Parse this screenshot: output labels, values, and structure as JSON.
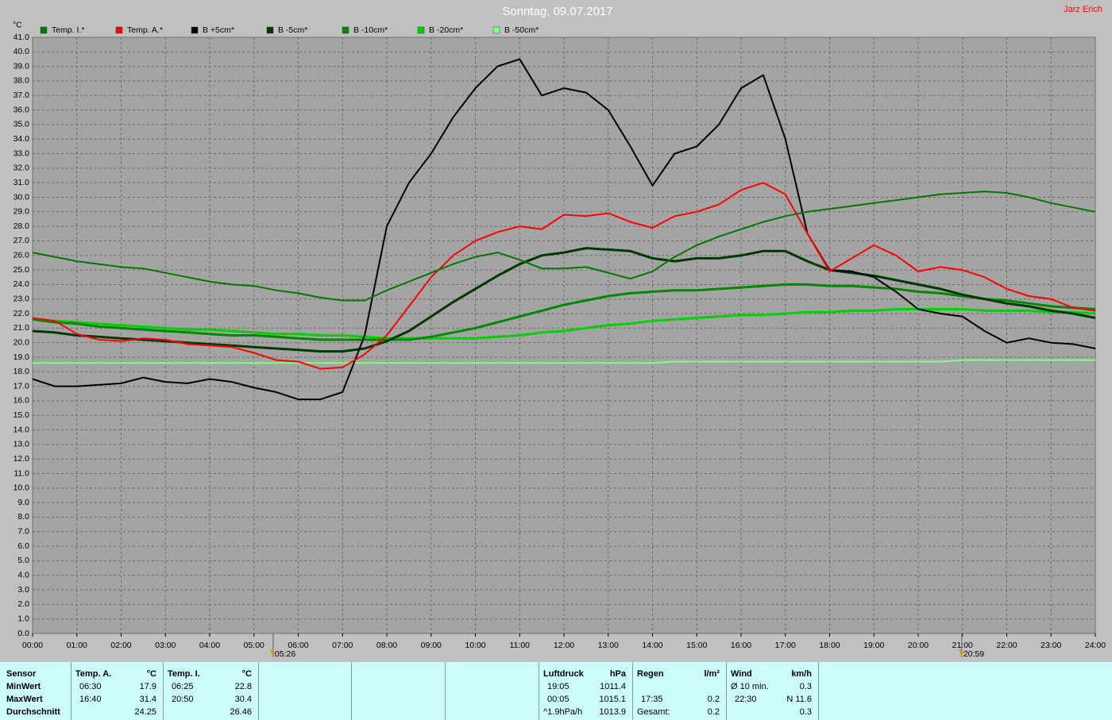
{
  "chart_data": {
    "type": "line",
    "title": "Sonntag, 09.07.2017",
    "author": "Jarz Erich",
    "ylabel": "°C",
    "legend": "top",
    "grid": true,
    "x": [
      0,
      0.5,
      1,
      1.5,
      2,
      2.5,
      3,
      3.5,
      4,
      4.5,
      5,
      5.5,
      6,
      6.5,
      7,
      7.5,
      8,
      8.5,
      9,
      9.5,
      10,
      10.5,
      11,
      11.5,
      12,
      12.5,
      13,
      13.5,
      14,
      14.5,
      15,
      15.5,
      16,
      16.5,
      17,
      17.5,
      18,
      18.5,
      19,
      19.5,
      20,
      20.5,
      21,
      21.5,
      22,
      22.5,
      23,
      23.5,
      24
    ],
    "xlim": [
      0,
      24
    ],
    "xticks": [
      {
        "value": 0,
        "label": "00:00"
      },
      {
        "value": 1,
        "label": "01:00"
      },
      {
        "value": 2,
        "label": "02:00"
      },
      {
        "value": 3,
        "label": "03:00"
      },
      {
        "value": 4,
        "label": "04:00"
      },
      {
        "value": 5,
        "label": "05:00"
      },
      {
        "value": 6,
        "label": "06:00"
      },
      {
        "value": 7,
        "label": "07:00"
      },
      {
        "value": 8,
        "label": "08:00"
      },
      {
        "value": 9,
        "label": "09:00"
      },
      {
        "value": 10,
        "label": "10:00"
      },
      {
        "value": 11,
        "label": "11:00"
      },
      {
        "value": 12,
        "label": "12:00"
      },
      {
        "value": 13,
        "label": "13:00"
      },
      {
        "value": 14,
        "label": "14:00"
      },
      {
        "value": 15,
        "label": "15:00"
      },
      {
        "value": 16,
        "label": "16:00"
      },
      {
        "value": 17,
        "label": "17:00"
      },
      {
        "value": 18,
        "label": "18:00"
      },
      {
        "value": 19,
        "label": "19:00"
      },
      {
        "value": 20,
        "label": "20:00"
      },
      {
        "value": 21,
        "label": "21:00"
      },
      {
        "value": 22,
        "label": "22:00"
      },
      {
        "value": 23,
        "label": "23:00"
      },
      {
        "value": 24,
        "label": "24:00"
      }
    ],
    "ylim": [
      0,
      41
    ],
    "yticks": [
      {
        "value": 0,
        "label": "0.0"
      },
      {
        "value": 1,
        "label": "1.0"
      },
      {
        "value": 2,
        "label": "2.0"
      },
      {
        "value": 3,
        "label": "3.0"
      },
      {
        "value": 4,
        "label": "4.0"
      },
      {
        "value": 5,
        "label": "5.0"
      },
      {
        "value": 6,
        "label": "6.0"
      },
      {
        "value": 7,
        "label": "7.0"
      },
      {
        "value": 8,
        "label": "8.0"
      },
      {
        "value": 9,
        "label": "9.0"
      },
      {
        "value": 10,
        "label": "10.0"
      },
      {
        "value": 11,
        "label": "11.0"
      },
      {
        "value": 12,
        "label": "12.0"
      },
      {
        "value": 13,
        "label": "13.0"
      },
      {
        "value": 14,
        "label": "14.0"
      },
      {
        "value": 15,
        "label": "15.0"
      },
      {
        "value": 16,
        "label": "16.0"
      },
      {
        "value": 17,
        "label": "17.0"
      },
      {
        "value": 18,
        "label": "18.0"
      },
      {
        "value": 19,
        "label": "19.0"
      },
      {
        "value": 20,
        "label": "20.0"
      },
      {
        "value": 21,
        "label": "21.0"
      },
      {
        "value": 22,
        "label": "22.0"
      },
      {
        "value": 23,
        "label": "23.0"
      },
      {
        "value": 24,
        "label": "24.0"
      },
      {
        "value": 25,
        "label": "25.0"
      },
      {
        "value": 26,
        "label": "26.0"
      },
      {
        "value": 27,
        "label": "27.0"
      },
      {
        "value": 28,
        "label": "28.0"
      },
      {
        "value": 29,
        "label": "29.0"
      },
      {
        "value": 30,
        "label": "30.0"
      },
      {
        "value": 31,
        "label": "31.0"
      },
      {
        "value": 32,
        "label": "32.0"
      },
      {
        "value": 33,
        "label": "33.0"
      },
      {
        "value": 34,
        "label": "34.0"
      },
      {
        "value": 35,
        "label": "35.0"
      },
      {
        "value": 36,
        "label": "36.0"
      },
      {
        "value": 37,
        "label": "37.0"
      },
      {
        "value": 38,
        "label": "38.0"
      },
      {
        "value": 39,
        "label": "39.0"
      },
      {
        "value": 40,
        "label": "40.0"
      },
      {
        "value": 41,
        "label": "41.0"
      }
    ],
    "series": [
      {
        "name": "Temp. I.*",
        "color": "#007800",
        "width": 2,
        "values": [
          26.2,
          25.9,
          25.6,
          25.4,
          25.2,
          25.1,
          24.8,
          24.5,
          24.2,
          24.0,
          23.9,
          23.6,
          23.4,
          23.1,
          22.9,
          22.9,
          23.6,
          24.2,
          24.8,
          25.4,
          25.9,
          26.2,
          25.7,
          25.1,
          25.1,
          25.2,
          24.8,
          24.4,
          24.9,
          25.9,
          26.7,
          27.3,
          27.8,
          28.3,
          28.7,
          29.0,
          29.2,
          29.4,
          29.6,
          29.8,
          30.0,
          30.2,
          30.3,
          30.4,
          30.3,
          30.0,
          29.6,
          29.3,
          29.0
        ]
      },
      {
        "name": "Temp. A.*",
        "color": "#ff0000",
        "width": 2,
        "values": [
          21.7,
          21.5,
          20.6,
          20.2,
          20.1,
          20.3,
          20.2,
          19.9,
          19.8,
          19.7,
          19.3,
          18.8,
          18.7,
          18.2,
          18.3,
          19.2,
          20.5,
          22.5,
          24.5,
          26.0,
          27.0,
          27.6,
          28.0,
          27.8,
          28.8,
          28.7,
          28.9,
          28.3,
          27.9,
          28.7,
          29.0,
          29.5,
          30.5,
          31.0,
          30.2,
          27.5,
          24.9,
          25.8,
          26.7,
          26.0,
          24.9,
          25.2,
          25.0,
          24.5,
          23.7,
          23.2,
          23.0,
          22.4,
          22.2
        ]
      },
      {
        "name": "B +5cm*",
        "color": "#000000",
        "width": 2,
        "values": [
          17.5,
          17.0,
          17.0,
          17.1,
          17.2,
          17.6,
          17.3,
          17.2,
          17.5,
          17.3,
          16.9,
          16.6,
          16.1,
          16.1,
          16.6,
          20.5,
          28.0,
          31.0,
          33.0,
          35.5,
          37.5,
          39.0,
          39.5,
          37.0,
          37.5,
          37.2,
          36.0,
          33.5,
          30.8,
          33.0,
          33.5,
          35.0,
          37.5,
          38.4,
          34.0,
          27.5,
          25.0,
          24.9,
          24.5,
          23.5,
          22.3,
          22.0,
          21.8,
          20.8,
          20.0,
          20.3,
          20.0,
          19.9,
          19.6
        ]
      },
      {
        "name": "B -5cm*",
        "color": "#003800",
        "width": 3,
        "values": [
          20.8,
          20.7,
          20.5,
          20.4,
          20.3,
          20.2,
          20.1,
          20.0,
          19.9,
          19.8,
          19.7,
          19.6,
          19.5,
          19.4,
          19.4,
          19.6,
          20.1,
          20.8,
          21.8,
          22.8,
          23.7,
          24.6,
          25.4,
          26.0,
          26.2,
          26.5,
          26.4,
          26.3,
          25.8,
          25.6,
          25.8,
          25.8,
          26.0,
          26.3,
          26.3,
          25.6,
          25.0,
          24.8,
          24.6,
          24.3,
          24.0,
          23.7,
          23.3,
          23.0,
          22.7,
          22.5,
          22.2,
          22.0,
          21.7
        ]
      },
      {
        "name": "B -10cm*",
        "color": "#008800",
        "width": 3,
        "values": [
          21.6,
          21.4,
          21.3,
          21.1,
          21.0,
          20.9,
          20.8,
          20.7,
          20.6,
          20.5,
          20.5,
          20.4,
          20.3,
          20.2,
          20.2,
          20.2,
          20.2,
          20.2,
          20.4,
          20.7,
          21.0,
          21.4,
          21.8,
          22.2,
          22.6,
          22.9,
          23.2,
          23.4,
          23.5,
          23.6,
          23.6,
          23.7,
          23.8,
          23.9,
          24.0,
          24.0,
          23.9,
          23.9,
          23.8,
          23.7,
          23.5,
          23.4,
          23.2,
          23.0,
          22.9,
          22.7,
          22.5,
          22.4,
          22.3
        ]
      },
      {
        "name": "B -20cm*",
        "color": "#00d000",
        "width": 3,
        "values": [
          21.6,
          21.5,
          21.4,
          21.3,
          21.2,
          21.1,
          21.0,
          20.9,
          20.9,
          20.8,
          20.7,
          20.6,
          20.6,
          20.5,
          20.5,
          20.4,
          20.3,
          20.3,
          20.3,
          20.3,
          20.3,
          20.4,
          20.5,
          20.7,
          20.8,
          21.0,
          21.2,
          21.3,
          21.5,
          21.6,
          21.7,
          21.8,
          21.9,
          21.9,
          22.0,
          22.1,
          22.1,
          22.2,
          22.2,
          22.3,
          22.3,
          22.3,
          22.3,
          22.2,
          22.2,
          22.2,
          22.1,
          22.1,
          22.0
        ]
      },
      {
        "name": "B -50cm*",
        "color": "#80ff80",
        "width": 2,
        "values": [
          18.6,
          18.6,
          18.6,
          18.6,
          18.6,
          18.6,
          18.6,
          18.6,
          18.6,
          18.6,
          18.6,
          18.6,
          18.6,
          18.6,
          18.6,
          18.6,
          18.6,
          18.6,
          18.6,
          18.6,
          18.6,
          18.6,
          18.6,
          18.6,
          18.6,
          18.6,
          18.6,
          18.6,
          18.6,
          18.7,
          18.7,
          18.7,
          18.7,
          18.7,
          18.7,
          18.7,
          18.7,
          18.7,
          18.7,
          18.7,
          18.7,
          18.7,
          18.8,
          18.8,
          18.8,
          18.8,
          18.8,
          18.8,
          18.8
        ]
      }
    ],
    "annotations": [
      {
        "label": "05:26"
      },
      {
        "label": "20:59"
      }
    ]
  },
  "stats": {
    "row_header": "Sensor",
    "row_labels": [
      "MinWert",
      "MaxWert",
      "Durchschnitt"
    ],
    "columns": [
      {
        "header": "Temp. A.",
        "unit": "°C",
        "rows": [
          [
            "06:30",
            "17.9"
          ],
          [
            "16:40",
            "31.4"
          ],
          [
            null,
            "24.25"
          ]
        ]
      },
      {
        "header": "Temp. I.",
        "unit": "°C",
        "rows": [
          [
            "06:25",
            "22.8"
          ],
          [
            "20:50",
            "30.4"
          ],
          [
            null,
            "26.46"
          ]
        ]
      },
      {
        "header": "Luftdruck",
        "unit": "hPa",
        "rows": [
          [
            "19:05",
            "1011.4"
          ],
          [
            "00:05",
            "1015.1"
          ],
          [
            "^1.9hPa/h",
            "1013.9"
          ]
        ]
      },
      {
        "header": "Regen",
        "unit": "l/m²",
        "rows": [
          [
            null,
            null
          ],
          [
            "17:35",
            "0.2"
          ],
          [
            "Gesamt:",
            "0.2"
          ]
        ]
      },
      {
        "header": "Wind",
        "unit": "km/h",
        "rows": [
          [
            "Ø 10 min.",
            "0.3"
          ],
          [
            "22:30",
            "N 11.6"
          ],
          [
            null,
            "0.3"
          ]
        ]
      }
    ]
  }
}
